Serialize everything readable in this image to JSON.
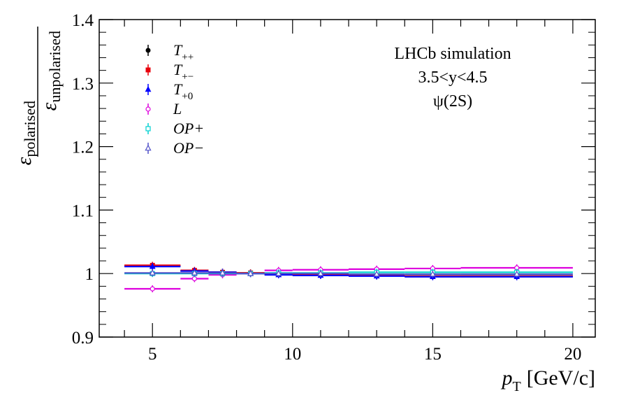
{
  "chart_data": {
    "type": "scatter",
    "title": "",
    "xlabel_main": "p",
    "xlabel_sub": "T",
    "xlabel_unit": "[GeV/c]",
    "ylabel_num_main": "ε",
    "ylabel_num_sub": "polarised",
    "ylabel_den_main": "ε",
    "ylabel_den_sub": "unpolarised",
    "xlim": [
      3.1,
      20.8
    ],
    "ylim": [
      0.9,
      1.4
    ],
    "x_ticks": [
      5,
      10,
      15,
      20
    ],
    "x_tick_labels": [
      "5",
      "10",
      "15",
      "20"
    ],
    "y_ticks": [
      0.9,
      1.0,
      1.1,
      1.2,
      1.3,
      1.4
    ],
    "y_tick_labels": [
      "0.9",
      "1",
      "1.1",
      "1.2",
      "1.3",
      "1.4"
    ],
    "grid": false,
    "legend_position": "top-left",
    "annotations": [
      "LHCb simulation",
      "3.5<y<4.5",
      "ψ(2S)"
    ],
    "bins": [
      [
        4,
        6
      ],
      [
        6,
        7
      ],
      [
        7,
        8
      ],
      [
        8,
        9
      ],
      [
        9,
        10
      ],
      [
        10,
        12
      ],
      [
        12,
        14
      ],
      [
        14,
        16
      ],
      [
        16,
        20
      ]
    ],
    "x": [
      5,
      6.5,
      7.5,
      8.5,
      9.5,
      11,
      13,
      15,
      18
    ],
    "series": [
      {
        "name": "T++",
        "legend_main": "T",
        "legend_sub": "++",
        "color": "#000000",
        "marker": "circle-filled",
        "values": [
          1.012,
          1.004,
          1.002,
          1.001,
          0.999,
          0.998,
          0.997,
          0.996,
          0.996
        ]
      },
      {
        "name": "T+-",
        "legend_main": "T",
        "legend_sub": "+−",
        "color": "#e8000b",
        "marker": "square-filled",
        "values": [
          1.013,
          1.005,
          1.002,
          1.001,
          0.999,
          0.998,
          0.997,
          0.996,
          0.996
        ]
      },
      {
        "name": "T+0",
        "legend_main": "T",
        "legend_sub": "+0",
        "color": "#0000ff",
        "marker": "triangle-filled",
        "values": [
          1.011,
          1.004,
          1.002,
          1.0,
          0.998,
          0.997,
          0.996,
          0.995,
          0.995
        ]
      },
      {
        "name": "L",
        "legend_main": "L",
        "legend_sub": "",
        "color": "#dd00dd",
        "marker": "circle-open",
        "values": [
          0.976,
          0.992,
          0.998,
          1.0,
          1.005,
          1.006,
          1.007,
          1.008,
          1.009
        ]
      },
      {
        "name": "OP+",
        "legend_main": "OP+",
        "legend_sub": "",
        "color": "#00d0d0",
        "marker": "square-open",
        "values": [
          1.0,
          1.0,
          1.0,
          1.0,
          1.001,
          1.001,
          1.002,
          1.002,
          1.002
        ]
      },
      {
        "name": "OP−",
        "legend_main": "OP−",
        "legend_sub": "",
        "color": "#5050c8",
        "marker": "triangle-open",
        "values": [
          1.001,
          1.001,
          1.001,
          1.0,
          1.0,
          1.0,
          0.999,
          0.999,
          0.999
        ]
      }
    ]
  }
}
